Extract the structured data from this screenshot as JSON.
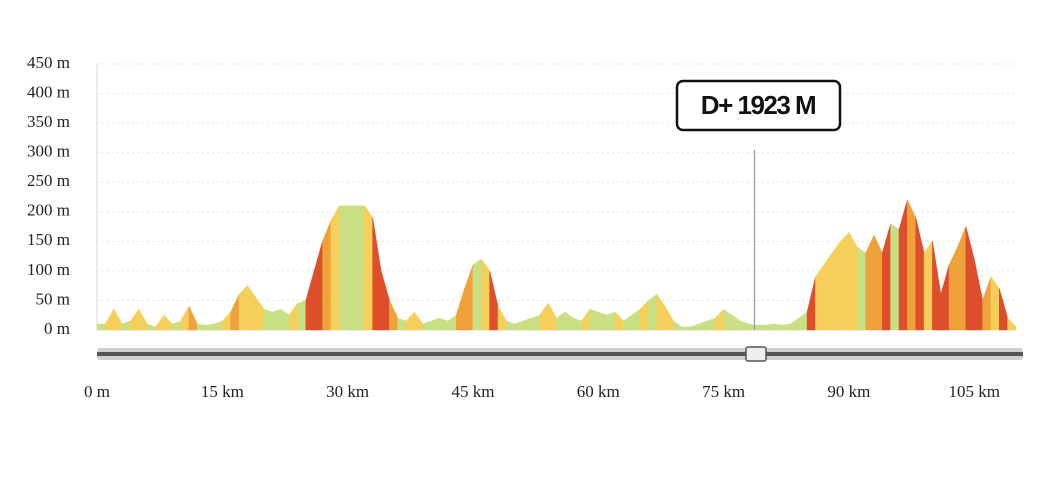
{
  "chart_data": {
    "type": "area",
    "x": [
      0,
      1,
      2,
      3,
      4,
      5,
      6,
      7,
      8,
      9,
      10,
      11,
      12,
      13,
      14,
      15,
      16,
      17,
      18,
      19,
      20,
      21,
      22,
      23,
      24,
      25,
      26,
      27,
      28,
      29,
      30,
      31,
      32,
      33,
      34,
      35,
      36,
      37,
      38,
      39,
      40,
      41,
      42,
      43,
      44,
      45,
      46,
      47,
      48,
      49,
      50,
      51,
      52,
      53,
      54,
      55,
      56,
      57,
      58,
      59,
      60,
      61,
      62,
      63,
      64,
      65,
      66,
      67,
      68,
      69,
      70,
      71,
      72,
      73,
      74,
      75,
      76,
      77,
      78,
      79,
      80,
      81,
      82,
      83,
      84,
      85,
      86,
      87,
      88,
      89,
      90,
      91,
      92,
      93,
      94,
      95,
      96,
      97,
      98,
      99,
      100,
      101,
      102,
      103,
      104,
      105,
      106,
      107,
      108,
      109,
      110
    ],
    "series": [
      {
        "values": [
          10,
          10,
          35,
          10,
          15,
          35,
          10,
          5,
          25,
          10,
          15,
          40,
          10,
          8,
          10,
          15,
          30,
          60,
          75,
          55,
          35,
          30,
          35,
          25,
          45,
          50,
          100,
          150,
          185,
          210,
          210,
          210,
          210,
          190,
          100,
          50,
          20,
          15,
          30,
          10,
          15,
          20,
          15,
          25,
          70,
          110,
          120,
          100,
          40,
          15,
          10,
          15,
          20,
          25,
          45,
          20,
          30,
          20,
          15,
          35,
          30,
          25,
          30,
          15,
          25,
          35,
          50,
          60,
          40,
          15,
          5,
          5,
          10,
          15,
          20,
          35,
          25,
          15,
          10,
          8,
          8,
          10,
          8,
          10,
          20,
          30,
          90,
          110,
          130,
          150,
          165,
          140,
          130,
          160,
          130,
          180,
          170,
          220,
          190,
          130,
          150,
          60,
          110,
          140,
          175,
          120,
          50,
          90,
          70,
          20,
          5
        ],
        "colors": [
          "#c9df84",
          "#f5cf5a",
          "#f5cf5a",
          "#c9df84",
          "#f5cf5a",
          "#f5cf5a",
          "#c9df84",
          "#f5cf5a",
          "#f5cf5a",
          "#c9df84",
          "#f5cf5a",
          "#f0a23a",
          "#c9df84",
          "#c9df84",
          "#c9df84",
          "#f5cf5a",
          "#f0a23a",
          "#f5cf5a",
          "#f5cf5a",
          "#f5cf5a",
          "#c9df84",
          "#c9df84",
          "#c9df84",
          "#f5cf5a",
          "#c9df84",
          "#dd4e2a",
          "#dd4e2a",
          "#f0a23a",
          "#f5cf5a",
          "#c9df84",
          "#c9df84",
          "#c9df84",
          "#f5cf5a",
          "#dd4e2a",
          "#dd4e2a",
          "#f0a23a",
          "#c9df84",
          "#f5cf5a",
          "#f5cf5a",
          "#c9df84",
          "#c9df84",
          "#c9df84",
          "#c9df84",
          "#f0a23a",
          "#f0a23a",
          "#c9df84",
          "#f5cf5a",
          "#dd4e2a",
          "#f5cf5a",
          "#c9df84",
          "#c9df84",
          "#c9df84",
          "#c9df84",
          "#f5cf5a",
          "#f5cf5a",
          "#c9df84",
          "#c9df84",
          "#c9df84",
          "#f5cf5a",
          "#c9df84",
          "#c9df84",
          "#c9df84",
          "#f5cf5a",
          "#c9df84",
          "#c9df84",
          "#f5cf5a",
          "#c9df84",
          "#f5cf5a",
          "#f5cf5a",
          "#c9df84",
          "#c9df84",
          "#c9df84",
          "#c9df84",
          "#c9df84",
          "#f5cf5a",
          "#c9df84",
          "#c9df84",
          "#c9df84",
          "#c9df84",
          "#c9df84",
          "#c9df84",
          "#c9df84",
          "#c9df84",
          "#c9df84",
          "#c9df84",
          "#dd4e2a",
          "#f5cf5a",
          "#f5cf5a",
          "#f5cf5a",
          "#f5cf5a",
          "#f5cf5a",
          "#c9df84",
          "#f0a23a",
          "#f0a23a",
          "#dd4e2a",
          "#c9df84",
          "#dd4e2a",
          "#f0a23a",
          "#dd4e2a",
          "#f5cf5a",
          "#dd4e2a",
          "#dd4e2a",
          "#f0a23a",
          "#f0a23a",
          "#dd4e2a",
          "#dd4e2a",
          "#f0a23a",
          "#f5cf5a",
          "#dd4e2a",
          "#f5cf5a",
          "#c9df84"
        ]
      }
    ],
    "xlim": [
      0,
      110
    ],
    "ylim": [
      0,
      450
    ],
    "xticks": [
      {
        "value": 0,
        "label": "0 m"
      },
      {
        "value": 15,
        "label": "15 km"
      },
      {
        "value": 30,
        "label": "30 km"
      },
      {
        "value": 45,
        "label": "45 km"
      },
      {
        "value": 60,
        "label": "60 km"
      },
      {
        "value": 75,
        "label": "75 km"
      },
      {
        "value": 90,
        "label": "90 km"
      },
      {
        "value": 105,
        "label": "105 km"
      }
    ],
    "yticks": [
      {
        "value": 0,
        "label": "0 m"
      },
      {
        "value": 50,
        "label": "50 m"
      },
      {
        "value": 100,
        "label": "100 m"
      },
      {
        "value": 150,
        "label": "150 m"
      },
      {
        "value": 200,
        "label": "200 m"
      },
      {
        "value": 250,
        "label": "250 m"
      },
      {
        "value": 300,
        "label": "300 m"
      },
      {
        "value": 350,
        "label": "350 m"
      },
      {
        "value": 400,
        "label": "400 m"
      },
      {
        "value": 450,
        "label": "450 m"
      }
    ],
    "grid": true,
    "annotation": {
      "text": "D+ 1923 M",
      "x": 78.7
    }
  }
}
